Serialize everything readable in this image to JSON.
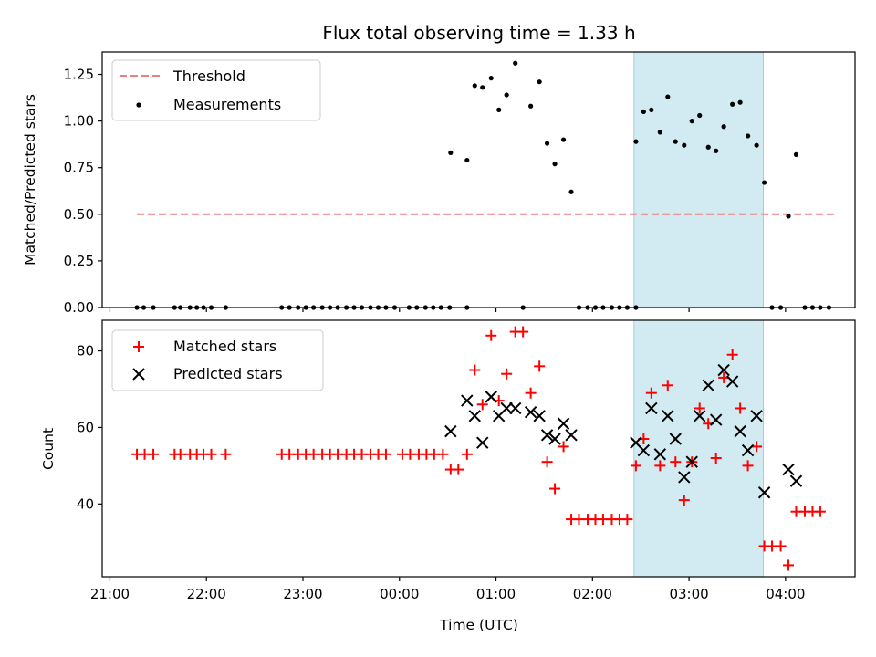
{
  "chart_data": [
    {
      "type": "scatter",
      "title": "Flux total observing time = 1.33 h",
      "ylabel": "Matched/Predicted stars",
      "xlabel": "",
      "x_unit": "hours since 21:00 UTC on the first day",
      "xlim": [
        -0.08,
        7.72
      ],
      "ylim": [
        0,
        1.37
      ],
      "yticks": [
        "0.00",
        "0.25",
        "0.50",
        "0.75",
        "1.00",
        "1.25"
      ],
      "highlight_span": {
        "x": [
          5.43,
          6.77
        ],
        "color": "#add8e6"
      },
      "threshold": {
        "name": "Threshold",
        "y": 0.5,
        "x": [
          0.28,
          7.5
        ],
        "color": "#f08080"
      },
      "series": [
        {
          "name": "Measurements",
          "color": "#000000",
          "marker": "dot",
          "points": [
            [
              0.28,
              0
            ],
            [
              0.35,
              0
            ],
            [
              0.45,
              0
            ],
            [
              0.67,
              0
            ],
            [
              0.73,
              0
            ],
            [
              0.83,
              0
            ],
            [
              0.9,
              0
            ],
            [
              0.97,
              0
            ],
            [
              1.05,
              0
            ],
            [
              1.2,
              0
            ],
            [
              1.78,
              0
            ],
            [
              1.86,
              0
            ],
            [
              1.95,
              0
            ],
            [
              2.03,
              0
            ],
            [
              2.11,
              0
            ],
            [
              2.2,
              0
            ],
            [
              2.28,
              0
            ],
            [
              2.36,
              0
            ],
            [
              2.45,
              0
            ],
            [
              2.53,
              0
            ],
            [
              2.61,
              0
            ],
            [
              2.7,
              0
            ],
            [
              2.78,
              0
            ],
            [
              2.86,
              0
            ],
            [
              2.95,
              0
            ],
            [
              3.1,
              0
            ],
            [
              3.18,
              0
            ],
            [
              3.27,
              0
            ],
            [
              3.35,
              0
            ],
            [
              3.43,
              0
            ],
            [
              3.52,
              0
            ],
            [
              3.7,
              0
            ],
            [
              4.28,
              0
            ],
            [
              3.53,
              0.83
            ],
            [
              3.7,
              0.79
            ],
            [
              3.78,
              1.19
            ],
            [
              3.86,
              1.18
            ],
            [
              3.95,
              1.23
            ],
            [
              4.03,
              1.06
            ],
            [
              4.11,
              1.14
            ],
            [
              4.2,
              1.31
            ],
            [
              4.36,
              1.08
            ],
            [
              4.45,
              1.21
            ],
            [
              4.53,
              0.88
            ],
            [
              4.61,
              0.77
            ],
            [
              4.7,
              0.9
            ],
            [
              4.78,
              0.62
            ],
            [
              4.86,
              0
            ],
            [
              4.95,
              0
            ],
            [
              5.03,
              0
            ],
            [
              5.11,
              0
            ],
            [
              5.2,
              0
            ],
            [
              5.28,
              0
            ],
            [
              5.36,
              0
            ],
            [
              5.45,
              0
            ],
            [
              5.45,
              0.89
            ],
            [
              5.53,
              1.05
            ],
            [
              5.61,
              1.06
            ],
            [
              5.7,
              0.94
            ],
            [
              5.78,
              1.13
            ],
            [
              5.86,
              0.89
            ],
            [
              5.95,
              0.87
            ],
            [
              6.03,
              1.0
            ],
            [
              6.11,
              1.03
            ],
            [
              6.2,
              0.86
            ],
            [
              6.28,
              0.84
            ],
            [
              6.36,
              0.97
            ],
            [
              6.45,
              1.09
            ],
            [
              6.53,
              1.1
            ],
            [
              6.61,
              0.92
            ],
            [
              6.7,
              0.87
            ],
            [
              6.78,
              0.67
            ],
            [
              6.86,
              0
            ],
            [
              6.95,
              0
            ],
            [
              7.03,
              0.49
            ],
            [
              7.11,
              0.82
            ],
            [
              7.2,
              0
            ],
            [
              7.28,
              0
            ],
            [
              7.36,
              0
            ],
            [
              7.45,
              0
            ]
          ]
        }
      ],
      "legend": {
        "placement": "upper-left",
        "entries": [
          "Threshold",
          "Measurements"
        ]
      },
      "grid": false
    },
    {
      "type": "scatter",
      "title": "",
      "ylabel": "Count",
      "xlabel": "Time (UTC)",
      "x_unit": "hours since 21:00 UTC on the first day",
      "xlim": [
        -0.08,
        7.72
      ],
      "ylim": [
        21,
        88
      ],
      "yticks": [
        "40",
        "60",
        "80"
      ],
      "xticks": [
        "21:00",
        "22:00",
        "23:00",
        "00:00",
        "01:00",
        "02:00",
        "03:00",
        "04:00"
      ],
      "highlight_span": {
        "x": [
          5.43,
          6.77
        ],
        "color": "#add8e6"
      },
      "series": [
        {
          "name": "Matched stars",
          "color": "#ff0000",
          "marker": "plus",
          "points": [
            [
              0.28,
              53
            ],
            [
              0.36,
              53
            ],
            [
              0.45,
              53
            ],
            [
              0.67,
              53
            ],
            [
              0.73,
              53
            ],
            [
              0.83,
              53
            ],
            [
              0.9,
              53
            ],
            [
              0.97,
              53
            ],
            [
              1.05,
              53
            ],
            [
              1.2,
              53
            ],
            [
              1.78,
              53
            ],
            [
              1.86,
              53
            ],
            [
              1.95,
              53
            ],
            [
              2.03,
              53
            ],
            [
              2.11,
              53
            ],
            [
              2.2,
              53
            ],
            [
              2.28,
              53
            ],
            [
              2.36,
              53
            ],
            [
              2.45,
              53
            ],
            [
              2.53,
              53
            ],
            [
              2.61,
              53
            ],
            [
              2.7,
              53
            ],
            [
              2.78,
              53
            ],
            [
              2.86,
              53
            ],
            [
              3.03,
              53
            ],
            [
              3.11,
              53
            ],
            [
              3.2,
              53
            ],
            [
              3.28,
              53
            ],
            [
              3.36,
              53
            ],
            [
              3.45,
              53
            ],
            [
              3.53,
              49
            ],
            [
              3.61,
              49
            ],
            [
              3.7,
              53
            ],
            [
              3.78,
              75
            ],
            [
              3.86,
              66
            ],
            [
              3.95,
              84
            ],
            [
              4.03,
              67
            ],
            [
              4.11,
              74
            ],
            [
              4.2,
              85
            ],
            [
              4.28,
              85
            ],
            [
              4.36,
              69
            ],
            [
              4.45,
              76
            ],
            [
              4.53,
              51
            ],
            [
              4.61,
              44
            ],
            [
              4.7,
              55
            ],
            [
              4.78,
              36
            ],
            [
              4.86,
              36
            ],
            [
              4.95,
              36
            ],
            [
              5.03,
              36
            ],
            [
              5.11,
              36
            ],
            [
              5.2,
              36
            ],
            [
              5.28,
              36
            ],
            [
              5.36,
              36
            ],
            [
              5.45,
              50
            ],
            [
              5.53,
              57
            ],
            [
              5.61,
              69
            ],
            [
              5.7,
              50
            ],
            [
              5.78,
              71
            ],
            [
              5.86,
              51
            ],
            [
              5.95,
              41
            ],
            [
              6.03,
              51
            ],
            [
              6.11,
              65
            ],
            [
              6.2,
              61
            ],
            [
              6.28,
              52
            ],
            [
              6.36,
              73
            ],
            [
              6.45,
              79
            ],
            [
              6.53,
              65
            ],
            [
              6.61,
              50
            ],
            [
              6.7,
              55
            ],
            [
              6.78,
              29
            ],
            [
              6.86,
              29
            ],
            [
              6.95,
              29
            ],
            [
              7.03,
              24
            ],
            [
              7.11,
              38
            ],
            [
              7.2,
              38
            ],
            [
              7.28,
              38
            ],
            [
              7.36,
              38
            ]
          ]
        },
        {
          "name": "Predicted stars",
          "color": "#000000",
          "marker": "x",
          "points": [
            [
              3.53,
              59
            ],
            [
              3.7,
              67
            ],
            [
              3.78,
              63
            ],
            [
              3.86,
              56
            ],
            [
              3.95,
              68
            ],
            [
              4.03,
              63
            ],
            [
              4.11,
              65
            ],
            [
              4.2,
              65
            ],
            [
              4.36,
              64
            ],
            [
              4.45,
              63
            ],
            [
              4.53,
              58
            ],
            [
              4.61,
              57
            ],
            [
              4.7,
              61
            ],
            [
              4.78,
              58
            ],
            [
              5.45,
              56
            ],
            [
              5.53,
              54
            ],
            [
              5.61,
              65
            ],
            [
              5.7,
              53
            ],
            [
              5.78,
              63
            ],
            [
              5.86,
              57
            ],
            [
              5.95,
              47
            ],
            [
              6.03,
              51
            ],
            [
              6.11,
              63
            ],
            [
              6.2,
              71
            ],
            [
              6.28,
              62
            ],
            [
              6.36,
              75
            ],
            [
              6.45,
              72
            ],
            [
              6.53,
              59
            ],
            [
              6.61,
              54
            ],
            [
              6.7,
              63
            ],
            [
              6.78,
              43
            ],
            [
              7.03,
              49
            ],
            [
              7.11,
              46
            ]
          ]
        }
      ],
      "legend": {
        "placement": "upper-left",
        "entries": [
          "Matched stars",
          "Predicted stars"
        ]
      },
      "grid": false
    }
  ]
}
